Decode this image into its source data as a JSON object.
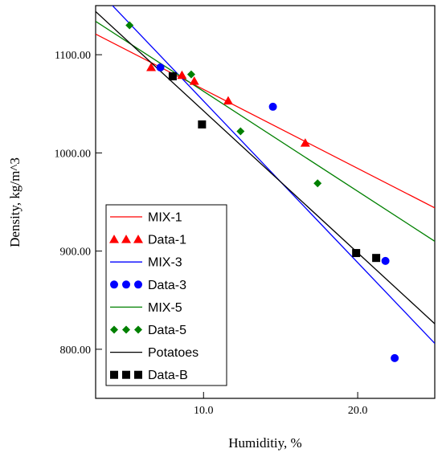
{
  "chart_data": {
    "type": "scatter",
    "title": "",
    "xlabel": "Humiditiy, %",
    "ylabel": "Density, kg/m^3",
    "xlim": [
      3.0,
      25.0
    ],
    "ylim": [
      750.0,
      1150.0
    ],
    "x_ticks": [
      10.0,
      20.0
    ],
    "x_tick_labels": [
      "10.0",
      "20.0"
    ],
    "y_ticks": [
      800.0,
      900.0,
      1000.0,
      1100.0
    ],
    "y_tick_labels": [
      "800.00",
      "900.00",
      "1000.00",
      "1100.00"
    ],
    "grid": false,
    "legend_position": "bottom-left",
    "lines": [
      {
        "name": "MIX-1",
        "color": "#ff0000",
        "x": [
          3.0,
          25.0
        ],
        "y": [
          1121,
          944
        ]
      },
      {
        "name": "MIX-3",
        "color": "#0000ff",
        "x": [
          3.0,
          25.0
        ],
        "y": [
          1168,
          806
        ]
      },
      {
        "name": "MIX-5",
        "color": "#008000",
        "x": [
          3.0,
          25.0
        ],
        "y": [
          1134,
          910
        ]
      },
      {
        "name": "Potatoes",
        "color": "#000000",
        "x": [
          3.0,
          25.0
        ],
        "y": [
          1144,
          826
        ]
      }
    ],
    "series": [
      {
        "name": "Data-1",
        "marker": "triangle",
        "color": "#ff0000",
        "x": [
          6.6,
          8.6,
          9.4,
          11.6,
          16.6
        ],
        "y": [
          1087,
          1079,
          1073,
          1053,
          1010
        ]
      },
      {
        "name": "Data-3",
        "marker": "circle",
        "color": "#0000ff",
        "x": [
          7.2,
          14.5,
          21.8,
          22.4
        ],
        "y": [
          1087,
          1047,
          890,
          791
        ]
      },
      {
        "name": "Data-5",
        "marker": "diamond",
        "color": "#008000",
        "x": [
          5.2,
          9.2,
          12.4,
          17.4
        ],
        "y": [
          1130,
          1080,
          1022,
          969
        ]
      },
      {
        "name": "Data-B",
        "marker": "square",
        "color": "#000000",
        "x": [
          8.0,
          9.9,
          19.9,
          21.2
        ],
        "y": [
          1078,
          1029,
          898,
          893
        ]
      }
    ],
    "legend": [
      {
        "label": "MIX-1",
        "kind": "line",
        "color": "#ff0000"
      },
      {
        "label": "Data-1",
        "kind": "triangle",
        "color": "#ff0000"
      },
      {
        "label": "MIX-3",
        "kind": "line",
        "color": "#0000ff"
      },
      {
        "label": "Data-3",
        "kind": "circle",
        "color": "#0000ff"
      },
      {
        "label": "MIX-5",
        "kind": "line",
        "color": "#008000"
      },
      {
        "label": "Data-5",
        "kind": "diamond",
        "color": "#008000"
      },
      {
        "label": "Potatoes",
        "kind": "line",
        "color": "#000000"
      },
      {
        "label": "Data-B",
        "kind": "square",
        "color": "#000000"
      }
    ]
  }
}
